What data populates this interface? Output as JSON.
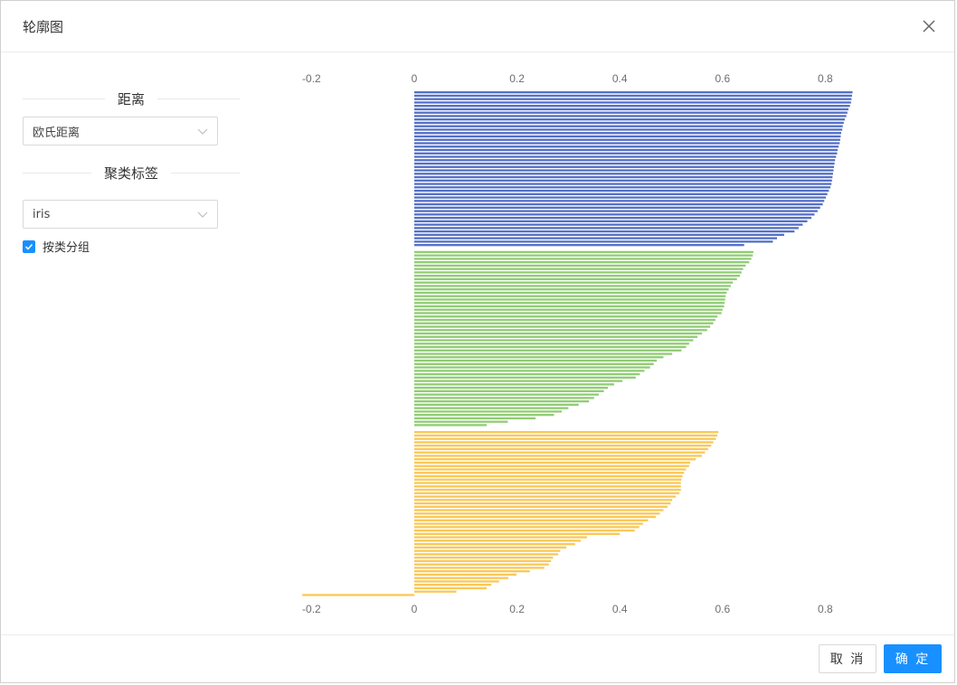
{
  "dialog": {
    "title": "轮廓图",
    "close_icon": "close-icon"
  },
  "sidebar": {
    "distance_section": "距离",
    "distance_value": "欧氏距离",
    "label_section": "聚类标签",
    "label_value": "iris",
    "group_checkbox_label": "按类分组",
    "group_checked": true
  },
  "footer": {
    "cancel_label": "取 消",
    "ok_label": "确 定"
  },
  "colors": {
    "cluster1": "#5470c6",
    "cluster2": "#91cc75",
    "cluster3": "#fac858",
    "primary": "#1890ff"
  },
  "chart_data": {
    "type": "bar",
    "orientation": "horizontal",
    "xlim": [
      -0.2,
      0.85
    ],
    "x_ticks": [
      -0.2,
      0,
      0.2,
      0.4,
      0.6,
      0.8
    ],
    "x_tick_labels": [
      "-0.2",
      "0",
      "0.2",
      "0.4",
      "0.6",
      "0.8"
    ],
    "axis_positions": "top and bottom",
    "grid": false,
    "series": [
      {
        "color": "#5470c6",
        "values": [
          0.853,
          0.852,
          0.851,
          0.85,
          0.848,
          0.845,
          0.843,
          0.841,
          0.838,
          0.836,
          0.834,
          0.833,
          0.831,
          0.83,
          0.829,
          0.828,
          0.826,
          0.824,
          0.823,
          0.821,
          0.819,
          0.818,
          0.817,
          0.816,
          0.815,
          0.814,
          0.813,
          0.812,
          0.81,
          0.807,
          0.804,
          0.801,
          0.798,
          0.795,
          0.79,
          0.785,
          0.779,
          0.773,
          0.765,
          0.756,
          0.748,
          0.74,
          0.72,
          0.706,
          0.698,
          0.642
        ]
      },
      {
        "color": "#91cc75",
        "values": [
          0.66,
          0.659,
          0.656,
          0.652,
          0.645,
          0.64,
          0.637,
          0.634,
          0.628,
          0.62,
          0.616,
          0.612,
          0.608,
          0.606,
          0.605,
          0.604,
          0.603,
          0.6,
          0.598,
          0.59,
          0.586,
          0.582,
          0.576,
          0.57,
          0.56,
          0.551,
          0.543,
          0.535,
          0.529,
          0.52,
          0.502,
          0.485,
          0.472,
          0.466,
          0.459,
          0.448,
          0.439,
          0.431,
          0.405,
          0.389,
          0.377,
          0.369,
          0.359,
          0.35,
          0.34,
          0.32,
          0.3,
          0.287,
          0.272,
          0.236,
          0.182,
          0.141
        ]
      },
      {
        "color": "#fac858",
        "values": [
          0.592,
          0.59,
          0.587,
          0.582,
          0.578,
          0.572,
          0.566,
          0.56,
          0.548,
          0.537,
          0.535,
          0.529,
          0.525,
          0.522,
          0.52,
          0.519,
          0.519,
          0.519,
          0.516,
          0.509,
          0.502,
          0.499,
          0.493,
          0.485,
          0.478,
          0.47,
          0.455,
          0.445,
          0.438,
          0.429,
          0.4,
          0.336,
          0.324,
          0.313,
          0.296,
          0.284,
          0.28,
          0.27,
          0.266,
          0.262,
          0.253,
          0.225,
          0.199,
          0.183,
          0.165,
          0.15,
          0.141,
          0.082,
          -0.218
        ]
      }
    ]
  }
}
